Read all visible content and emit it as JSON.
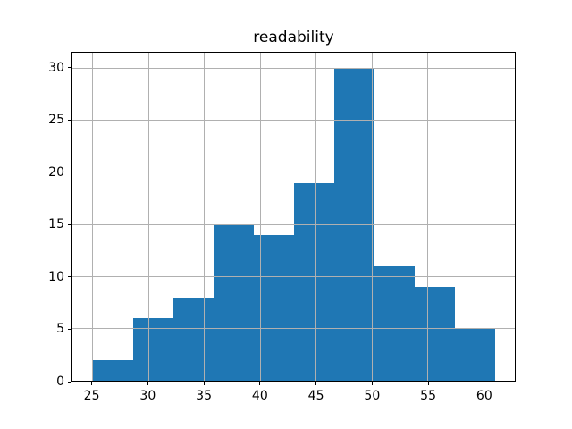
{
  "chart_data": {
    "type": "bar",
    "subtype": "histogram",
    "title": "readability",
    "xlabel": "",
    "ylabel": "",
    "bin_edges": [
      25.0,
      28.6,
      32.2,
      35.8,
      39.4,
      43.0,
      46.6,
      50.2,
      53.8,
      57.4,
      61.0
    ],
    "values": [
      2,
      6,
      8,
      15,
      14,
      19,
      30,
      11,
      9,
      5
    ],
    "x_ticks": [
      25,
      30,
      35,
      40,
      45,
      50,
      55,
      60
    ],
    "y_ticks": [
      0,
      5,
      10,
      15,
      20,
      25,
      30
    ],
    "xlim": [
      23.2,
      62.8
    ],
    "ylim": [
      0,
      31.5
    ],
    "grid": true,
    "legend": false,
    "colors": {
      "bar": "#1f77b4",
      "grid": "#b0b0b0",
      "axis": "#000000",
      "background": "#ffffff",
      "text": "#000000"
    }
  }
}
